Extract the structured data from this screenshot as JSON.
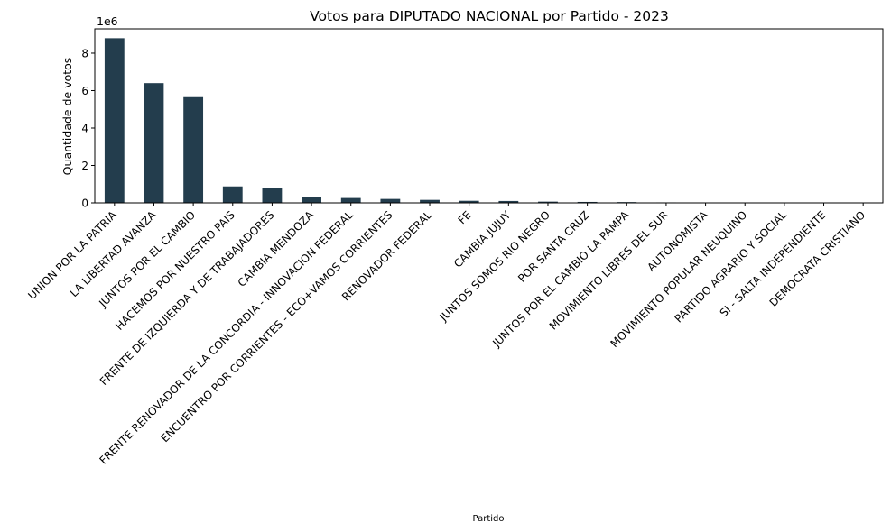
{
  "chart_data": {
    "type": "bar",
    "title": "Votos para DIPUTADO NACIONAL por Partido - 2023",
    "xlabel": "Partido",
    "ylabel": "Quantidade de votos",
    "y_offset_label": "1e6",
    "ylim": [
      0,
      9300000
    ],
    "yticks": [
      0,
      2000000,
      4000000,
      6000000,
      8000000
    ],
    "ytick_labels": [
      "0",
      "2",
      "4",
      "6",
      "8"
    ],
    "bar_color": "#233d4d",
    "grid": false,
    "categories": [
      "UNION POR LA PATRIA",
      "LA LIBERTAD AVANZA",
      "JUNTOS POR EL CAMBIO",
      "HACEMOS POR NUESTRO PAIS",
      "FRENTE DE IZQUIERDA Y DE TRABAJADORES",
      "CAMBIA MENDOZA",
      "FRENTE RENOVADOR DE LA CONCORDIA - INNOVACION FEDERAL",
      "ENCUENTRO POR CORRIENTES - ECO+VAMOS CORRIENTES",
      "RENOVADOR FEDERAL",
      "FE",
      "CAMBIA JUJUY",
      "JUNTOS SOMOS RIO NEGRO",
      "POR SANTA CRUZ",
      "JUNTOS POR EL CAMBIO LA PAMPA",
      "MOVIMIENTO LIBRES DEL SUR",
      "AUTONOMISTA",
      "MOVIMIENTO POPULAR NEUQUINO",
      "PARTIDO AGRARIO Y SOCIAL",
      "SI - SALTA INDEPENDIENTE",
      "DEMOCRATA CRISTIANO"
    ],
    "values": [
      8800000,
      6400000,
      5650000,
      880000,
      780000,
      310000,
      260000,
      210000,
      160000,
      110000,
      100000,
      65000,
      50000,
      40000,
      25000,
      20000,
      18000,
      15000,
      12000,
      10000
    ]
  }
}
